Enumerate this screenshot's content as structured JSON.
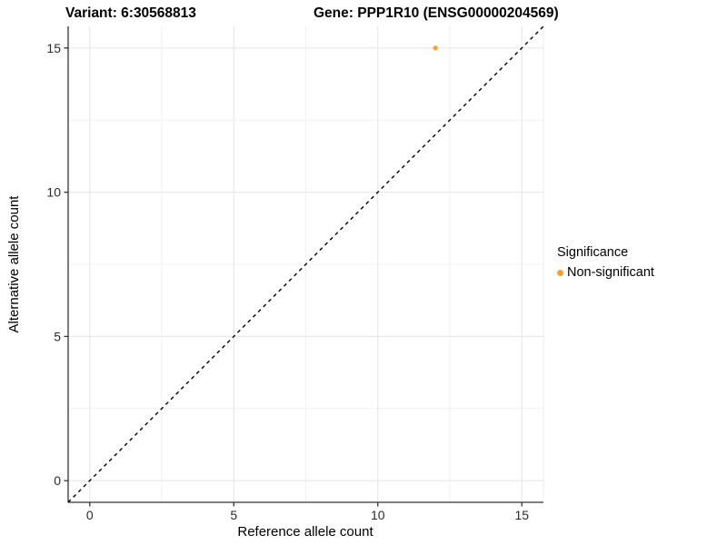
{
  "titles": {
    "variant": "Variant: 6:30568813",
    "gene": "Gene: PPP1R10 (ENSG00000204569)"
  },
  "chart_data": {
    "type": "scatter",
    "xlabel": "Reference allele count",
    "ylabel": "Alternative allele count",
    "xlim": [
      -0.75,
      15.75
    ],
    "ylim": [
      -0.75,
      15.75
    ],
    "x_major_ticks": [
      0,
      5,
      10,
      15
    ],
    "y_major_ticks": [
      0,
      5,
      10,
      15
    ],
    "x_minor_ticks": [
      2.5,
      7.5,
      12.5
    ],
    "y_minor_ticks": [
      2.5,
      7.5,
      12.5
    ],
    "grid": "major+minor",
    "identity_line": {
      "style": "dashed",
      "color": "#000000",
      "slope": 1,
      "intercept": 0
    },
    "series": [
      {
        "name": "Non-significant",
        "color": "#FA9E2D",
        "point_radius": 2.6,
        "points": [
          {
            "x": 12,
            "y": 15
          }
        ]
      }
    ],
    "legend": {
      "title": "Significance",
      "position": "right",
      "items": [
        {
          "label": "Non-significant",
          "color": "#FA9E2D"
        }
      ]
    }
  }
}
